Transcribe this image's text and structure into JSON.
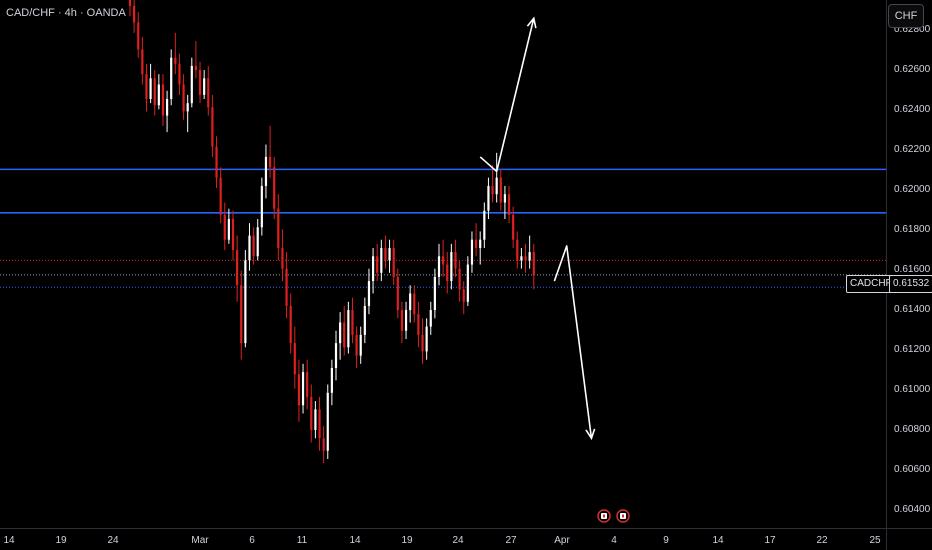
{
  "header": {
    "title": "CAD/CHF · 4h · OANDA",
    "currency_button": "CHF"
  },
  "price_axis": {
    "ticks": [
      "0.62800",
      "0.62600",
      "0.62400",
      "0.62200",
      "0.62000",
      "0.61800",
      "0.61600",
      "0.61400",
      "0.61200",
      "0.61000",
      "0.60800",
      "0.60600",
      "0.60400"
    ]
  },
  "time_axis": {
    "ticks": [
      "14",
      "19",
      "24",
      "Mar",
      "6",
      "11",
      "14",
      "19",
      "24",
      "27",
      "Apr",
      "4",
      "9",
      "14",
      "17",
      "22",
      "25"
    ]
  },
  "current_price": {
    "symbol_label": "CADCHF",
    "value": "0.61532"
  },
  "colors": {
    "background": "#000000",
    "up_candle": "#ffffff",
    "down_candle": "#e02020",
    "horizontal_lines": "#2962ff",
    "arrows": "#ffffff",
    "price_line": "#e02020",
    "event_icon": "#d32f2f"
  },
  "chart_data": {
    "type": "candlestick",
    "symbol": "CAD/CHF",
    "timeframe": "4h",
    "source": "OANDA",
    "ylim": [
      0.6035,
      0.6282
    ],
    "horizontal_levels": [
      0.6204,
      0.6183
    ],
    "dotted_levels": [
      0.616,
      0.6153,
      0.6147
    ],
    "last_price": 0.61532,
    "ohlc": [
      [
        0.6286,
        0.629,
        0.6278,
        0.6283
      ],
      [
        0.6283,
        0.6288,
        0.627,
        0.6275
      ],
      [
        0.6275,
        0.628,
        0.6258,
        0.6262
      ],
      [
        0.6262,
        0.6268,
        0.6245,
        0.625
      ],
      [
        0.625,
        0.6255,
        0.6232,
        0.6238
      ],
      [
        0.6238,
        0.6255,
        0.6236,
        0.6248
      ],
      [
        0.6248,
        0.6252,
        0.623,
        0.6235
      ],
      [
        0.6235,
        0.625,
        0.6233,
        0.6245
      ],
      [
        0.6245,
        0.625,
        0.6225,
        0.623
      ],
      [
        0.623,
        0.6242,
        0.6222,
        0.6238
      ],
      [
        0.6238,
        0.6262,
        0.6235,
        0.6258
      ],
      [
        0.6258,
        0.627,
        0.625,
        0.6255
      ],
      [
        0.6255,
        0.626,
        0.624,
        0.6245
      ],
      [
        0.6245,
        0.625,
        0.6228,
        0.6232
      ],
      [
        0.6232,
        0.624,
        0.6222,
        0.6236
      ],
      [
        0.6236,
        0.6258,
        0.6234,
        0.6254
      ],
      [
        0.6254,
        0.6266,
        0.6248,
        0.6252
      ],
      [
        0.6252,
        0.6256,
        0.6236,
        0.624
      ],
      [
        0.624,
        0.6252,
        0.6238,
        0.6248
      ],
      [
        0.6248,
        0.6254,
        0.623,
        0.6234
      ],
      [
        0.6234,
        0.624,
        0.621,
        0.6215
      ],
      [
        0.6215,
        0.622,
        0.6195,
        0.62
      ],
      [
        0.62,
        0.6205,
        0.6178,
        0.6182
      ],
      [
        0.6182,
        0.6188,
        0.6165,
        0.617
      ],
      [
        0.617,
        0.6185,
        0.6168,
        0.618
      ],
      [
        0.618,
        0.6184,
        0.616,
        0.6165
      ],
      [
        0.6165,
        0.6172,
        0.614,
        0.6148
      ],
      [
        0.6148,
        0.6155,
        0.6112,
        0.612
      ],
      [
        0.612,
        0.6165,
        0.6118,
        0.616
      ],
      [
        0.616,
        0.6178,
        0.6155,
        0.6172
      ],
      [
        0.6172,
        0.6176,
        0.6158,
        0.6162
      ],
      [
        0.6162,
        0.618,
        0.616,
        0.6176
      ],
      [
        0.6176,
        0.62,
        0.6172,
        0.6196
      ],
      [
        0.6196,
        0.6216,
        0.619,
        0.621
      ],
      [
        0.621,
        0.6225,
        0.62,
        0.6205
      ],
      [
        0.6205,
        0.621,
        0.618,
        0.6185
      ],
      [
        0.6185,
        0.6192,
        0.616,
        0.6166
      ],
      [
        0.6166,
        0.6175,
        0.615,
        0.6156
      ],
      [
        0.6156,
        0.6164,
        0.6132,
        0.6138
      ],
      [
        0.6138,
        0.6144,
        0.6115,
        0.612
      ],
      [
        0.612,
        0.6128,
        0.6098,
        0.6105
      ],
      [
        0.6105,
        0.6112,
        0.6082,
        0.609
      ],
      [
        0.609,
        0.611,
        0.6086,
        0.6106
      ],
      [
        0.6106,
        0.6112,
        0.6088,
        0.6094
      ],
      [
        0.6094,
        0.61,
        0.6072,
        0.6078
      ],
      [
        0.6078,
        0.6092,
        0.6074,
        0.6088
      ],
      [
        0.6088,
        0.6094,
        0.6068,
        0.6074
      ],
      [
        0.6074,
        0.608,
        0.6062,
        0.6068
      ],
      [
        0.6068,
        0.61,
        0.6064,
        0.6096
      ],
      [
        0.6096,
        0.6112,
        0.609,
        0.6108
      ],
      [
        0.6108,
        0.6126,
        0.6102,
        0.612
      ],
      [
        0.612,
        0.6135,
        0.6112,
        0.613
      ],
      [
        0.613,
        0.6138,
        0.6114,
        0.6118
      ],
      [
        0.6118,
        0.614,
        0.6115,
        0.6136
      ],
      [
        0.6136,
        0.6142,
        0.612,
        0.6124
      ],
      [
        0.6124,
        0.6128,
        0.6108,
        0.6114
      ],
      [
        0.6114,
        0.6128,
        0.611,
        0.6124
      ],
      [
        0.6124,
        0.6142,
        0.612,
        0.6138
      ],
      [
        0.6138,
        0.6156,
        0.6134,
        0.615
      ],
      [
        0.615,
        0.6166,
        0.6144,
        0.6162
      ],
      [
        0.6162,
        0.6168,
        0.615,
        0.6154
      ],
      [
        0.6154,
        0.617,
        0.615,
        0.6166
      ],
      [
        0.6166,
        0.6172,
        0.6156,
        0.616
      ],
      [
        0.616,
        0.617,
        0.6154,
        0.6166
      ],
      [
        0.6166,
        0.617,
        0.6148,
        0.6152
      ],
      [
        0.6152,
        0.6156,
        0.6132,
        0.6136
      ],
      [
        0.6136,
        0.614,
        0.612,
        0.6126
      ],
      [
        0.6126,
        0.614,
        0.6122,
        0.6136
      ],
      [
        0.6136,
        0.6148,
        0.613,
        0.6144
      ],
      [
        0.6144,
        0.6148,
        0.613,
        0.6134
      ],
      [
        0.6134,
        0.614,
        0.6118,
        0.6124
      ],
      [
        0.6124,
        0.6132,
        0.611,
        0.6116
      ],
      [
        0.6116,
        0.6132,
        0.6112,
        0.6128
      ],
      [
        0.6128,
        0.614,
        0.6124,
        0.6136
      ],
      [
        0.6136,
        0.6156,
        0.6132,
        0.6152
      ],
      [
        0.6152,
        0.6168,
        0.6148,
        0.6162
      ],
      [
        0.6162,
        0.617,
        0.6152,
        0.6158
      ],
      [
        0.6158,
        0.6164,
        0.6144,
        0.615
      ],
      [
        0.615,
        0.6168,
        0.6146,
        0.6164
      ],
      [
        0.6164,
        0.617,
        0.6152,
        0.6156
      ],
      [
        0.6156,
        0.616,
        0.614,
        0.6146
      ],
      [
        0.6146,
        0.615,
        0.6134,
        0.614
      ],
      [
        0.614,
        0.6162,
        0.6138,
        0.6158
      ],
      [
        0.6158,
        0.6174,
        0.6154,
        0.617
      ],
      [
        0.617,
        0.6178,
        0.6162,
        0.6166
      ],
      [
        0.6166,
        0.6174,
        0.6158,
        0.617
      ],
      [
        0.617,
        0.6188,
        0.6166,
        0.6184
      ],
      [
        0.6184,
        0.62,
        0.618,
        0.6196
      ],
      [
        0.6196,
        0.6206,
        0.6188,
        0.6192
      ],
      [
        0.6192,
        0.6212,
        0.6188,
        0.62
      ],
      [
        0.62,
        0.6204,
        0.6184,
        0.6188
      ],
      [
        0.6188,
        0.6196,
        0.618,
        0.6192
      ],
      [
        0.6192,
        0.6196,
        0.6178,
        0.6182
      ],
      [
        0.6182,
        0.6186,
        0.6166,
        0.617
      ],
      [
        0.617,
        0.6174,
        0.6156,
        0.616
      ],
      [
        0.616,
        0.6166,
        0.6156,
        0.6162
      ],
      [
        0.6162,
        0.6168,
        0.6154,
        0.616
      ],
      [
        0.616,
        0.6172,
        0.6156,
        0.6164
      ],
      [
        0.6164,
        0.6168,
        0.6146,
        0.6153
      ]
    ],
    "annotations": [
      {
        "type": "arrow",
        "direction": "up",
        "from": {
          "i": 85,
          "p": 0.621
        },
        "via": {
          "i": 89,
          "p": 0.6203
        },
        "to": {
          "i": 98,
          "p": 0.6277
        }
      },
      {
        "type": "arrow",
        "direction": "down",
        "from": {
          "i": 103,
          "p": 0.615
        },
        "via": {
          "i": 106,
          "p": 0.6167
        },
        "to": {
          "i": 112,
          "p": 0.6074
        }
      }
    ]
  }
}
